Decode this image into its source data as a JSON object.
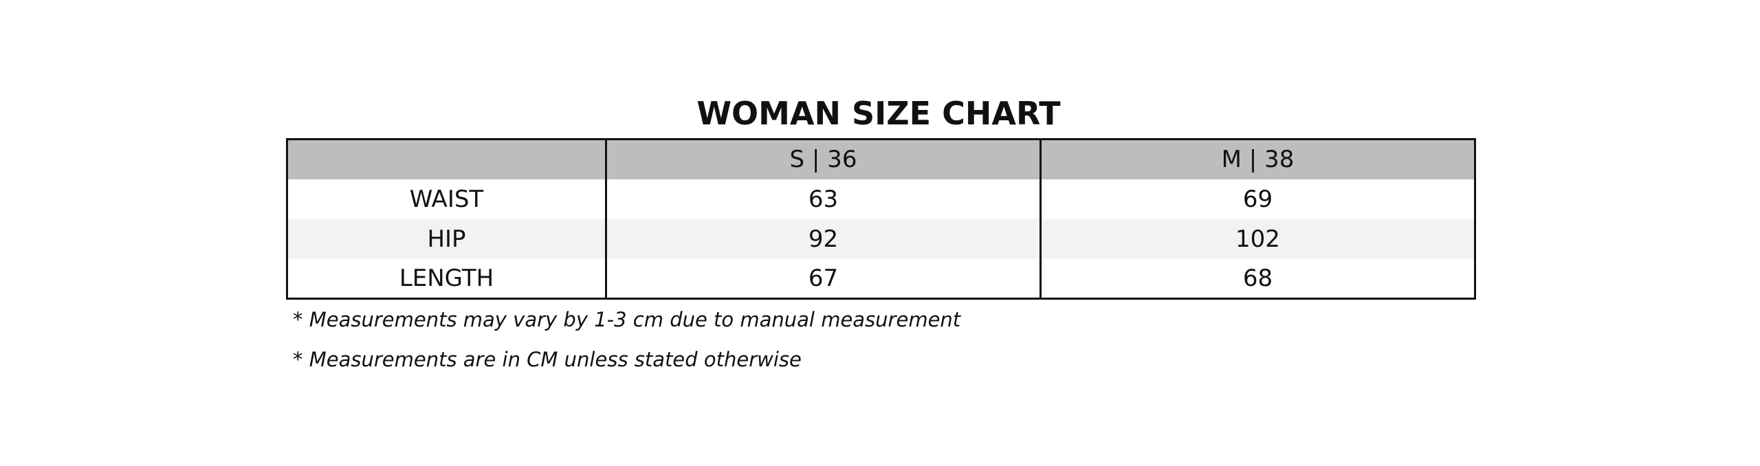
{
  "title": "WOMAN SIZE CHART",
  "table": {
    "header": [
      "S | 36",
      "M | 38"
    ],
    "rows": [
      [
        "WAIST",
        63,
        69
      ],
      [
        "HIP",
        92,
        102
      ],
      [
        "LENGTH",
        67,
        68
      ]
    ]
  },
  "notes": [
    "* Measurements may vary by 1-3 cm due to manual measurement",
    "* Measurements are in CM unless stated otherwise"
  ]
}
